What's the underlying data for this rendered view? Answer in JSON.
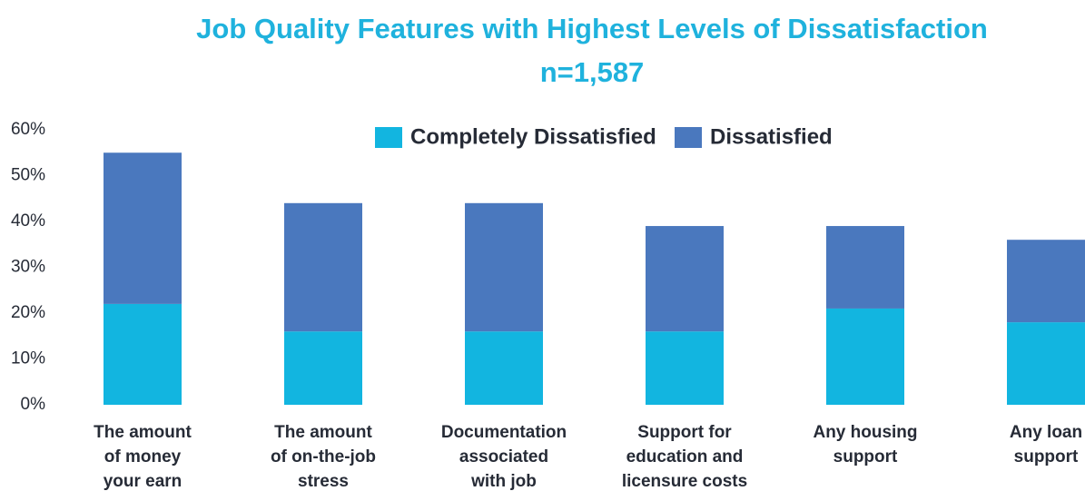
{
  "chart_data": {
    "type": "stacked_bar",
    "title": "Job Quality Features with Highest Levels of Dissatisfaction",
    "subtitle": "n=1,587",
    "categories": [
      "The amount\nof money\nyour earn",
      "The amount\nof on-the-job\nstress",
      "Documentation\nassociated\nwith job",
      "Support for\neducation and\nlicensure costs",
      "Any housing\nsupport",
      "Any loan\nsupport"
    ],
    "series": [
      {
        "name": "Completely Dissatisfied",
        "color": "#12b5e0",
        "values": [
          22,
          16,
          16,
          16,
          21,
          18
        ]
      },
      {
        "name": "Dissatisfied",
        "color": "#4a78be",
        "values": [
          33,
          28,
          28,
          23,
          18,
          18
        ]
      }
    ],
    "ylim": [
      0,
      60
    ],
    "yticks": [
      {
        "value": 0,
        "label": "0%"
      },
      {
        "value": 10,
        "label": "10%"
      },
      {
        "value": 20,
        "label": "20%"
      },
      {
        "value": 30,
        "label": "30%"
      },
      {
        "value": 40,
        "label": "40%"
      },
      {
        "value": 50,
        "label": "50%"
      },
      {
        "value": 60,
        "label": "60%"
      }
    ],
    "grid": false,
    "legend": "top"
  }
}
